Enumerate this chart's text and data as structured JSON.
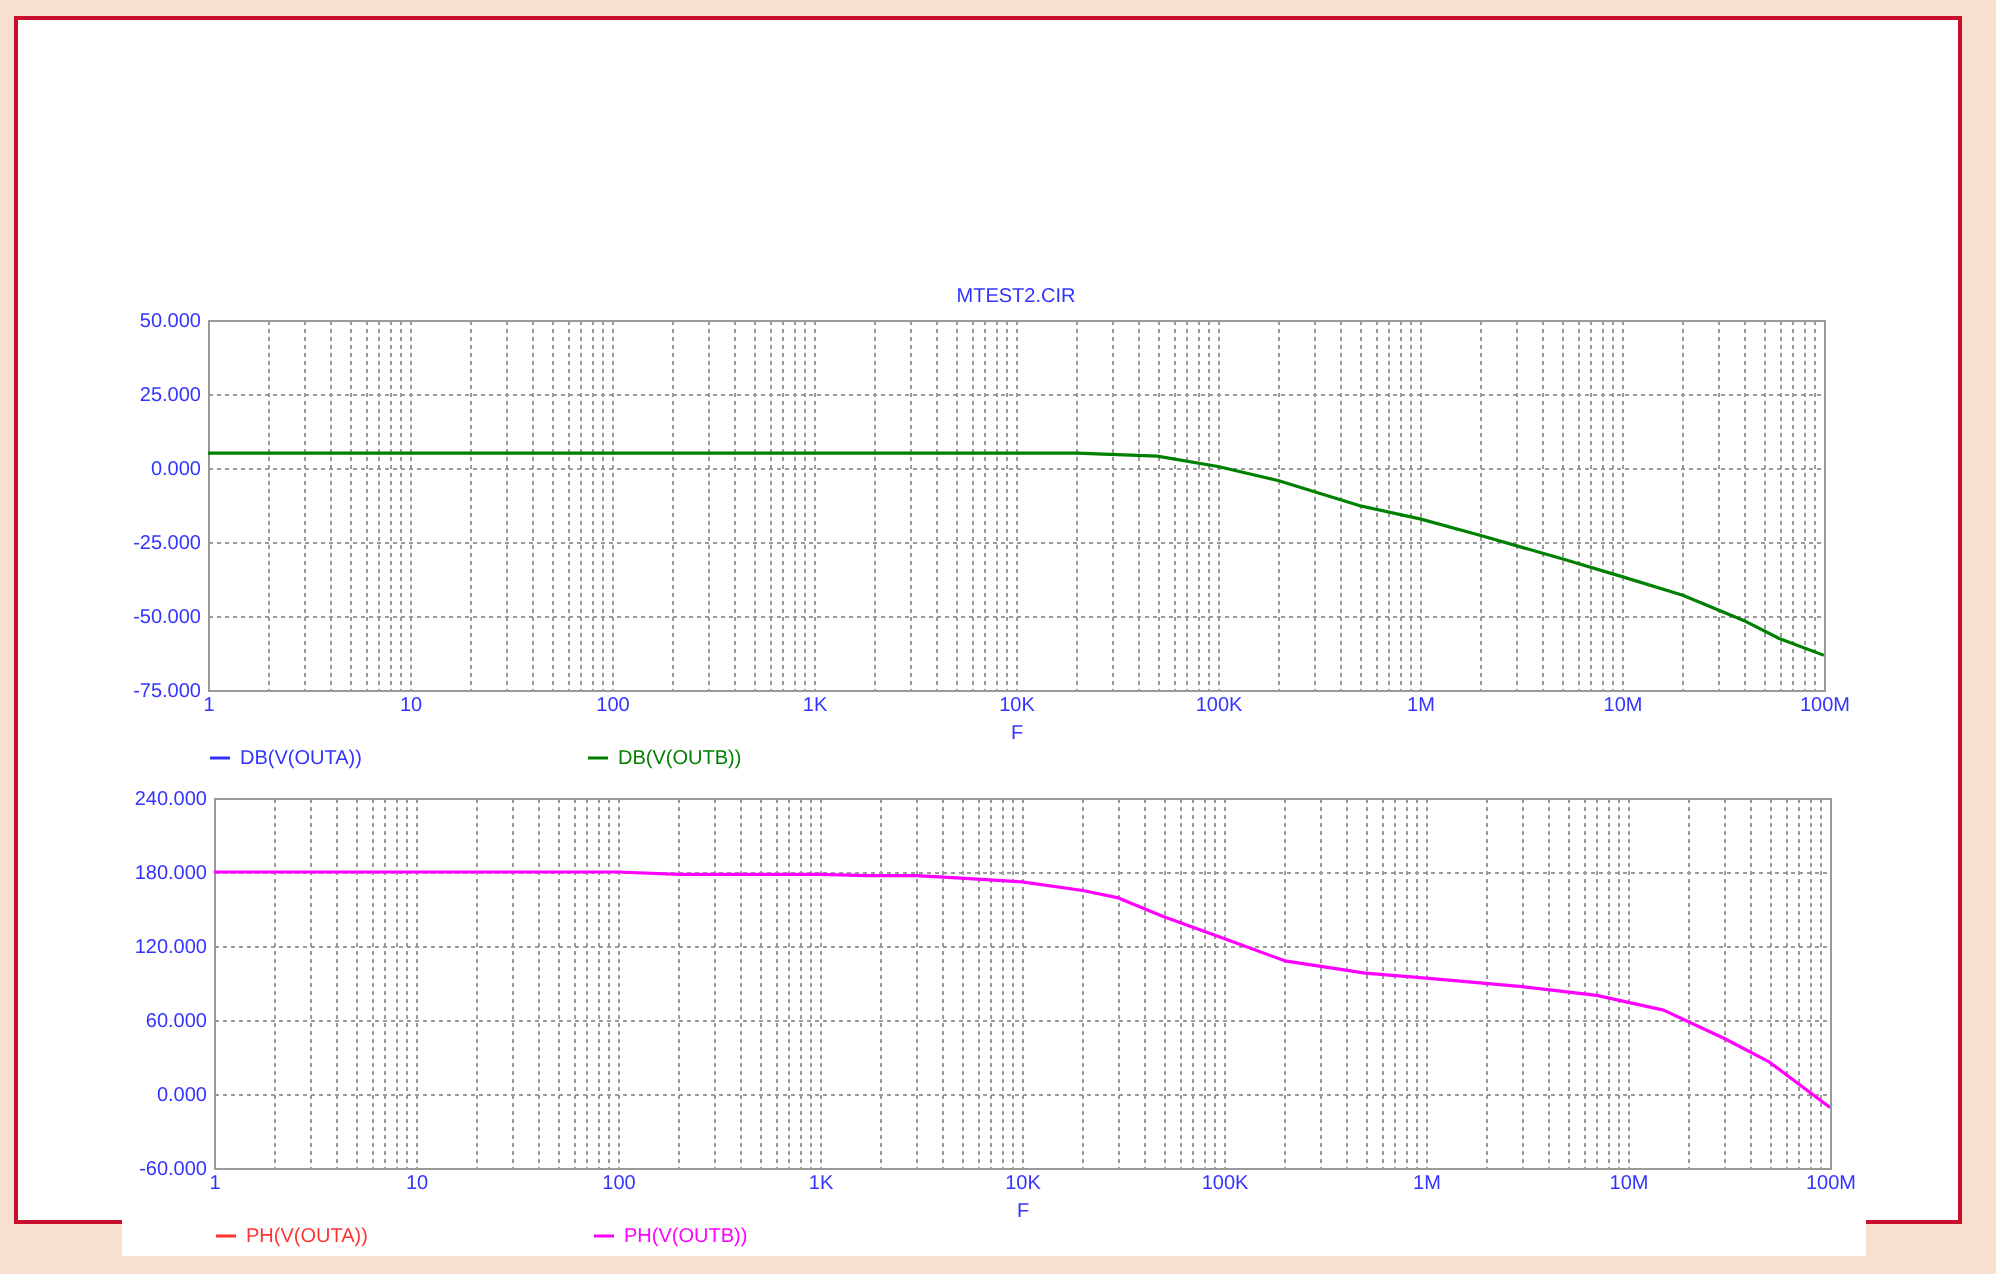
{
  "chart_data": [
    {
      "type": "line",
      "title": "MTEST2.CIR",
      "xlabel": "F",
      "log": "x",
      "grid": true,
      "legend": "bottom",
      "xlim": [
        1,
        100000000
      ],
      "ylim": [
        -75,
        50
      ],
      "xticks": [
        {
          "value": 1,
          "label": "1"
        },
        {
          "value": 2,
          "label": null
        },
        {
          "value": 3,
          "label": null
        },
        {
          "value": 4,
          "label": null
        },
        {
          "value": 5,
          "label": null
        },
        {
          "value": 6,
          "label": null
        },
        {
          "value": 7,
          "label": null
        },
        {
          "value": 8,
          "label": null
        },
        {
          "value": 9,
          "label": null
        },
        {
          "value": 10,
          "label": "10"
        },
        {
          "value": 20,
          "label": null
        },
        {
          "value": 30,
          "label": null
        },
        {
          "value": 40,
          "label": null
        },
        {
          "value": 50,
          "label": null
        },
        {
          "value": 60,
          "label": null
        },
        {
          "value": 70,
          "label": null
        },
        {
          "value": 80,
          "label": null
        },
        {
          "value": 90,
          "label": null
        },
        {
          "value": 100,
          "label": "100"
        },
        {
          "value": 200,
          "label": null
        },
        {
          "value": 300,
          "label": null
        },
        {
          "value": 400,
          "label": null
        },
        {
          "value": 500,
          "label": null
        },
        {
          "value": 600,
          "label": null
        },
        {
          "value": 700,
          "label": null
        },
        {
          "value": 800,
          "label": null
        },
        {
          "value": 900,
          "label": null
        },
        {
          "value": 1000,
          "label": "1K"
        },
        {
          "value": 2000,
          "label": null
        },
        {
          "value": 3000,
          "label": null
        },
        {
          "value": 4000,
          "label": null
        },
        {
          "value": 5000,
          "label": null
        },
        {
          "value": 6000,
          "label": null
        },
        {
          "value": 7000,
          "label": null
        },
        {
          "value": 8000,
          "label": null
        },
        {
          "value": 9000,
          "label": null
        },
        {
          "value": 10000,
          "label": "10K"
        },
        {
          "value": 20000,
          "label": null
        },
        {
          "value": 30000,
          "label": null
        },
        {
          "value": 40000,
          "label": null
        },
        {
          "value": 50000,
          "label": null
        },
        {
          "value": 60000,
          "label": null
        },
        {
          "value": 70000,
          "label": null
        },
        {
          "value": 80000,
          "label": null
        },
        {
          "value": 90000,
          "label": null
        },
        {
          "value": 100000,
          "label": "100K"
        },
        {
          "value": 200000,
          "label": null
        },
        {
          "value": 300000,
          "label": null
        },
        {
          "value": 400000,
          "label": null
        },
        {
          "value": 500000,
          "label": null
        },
        {
          "value": 600000,
          "label": null
        },
        {
          "value": 700000,
          "label": null
        },
        {
          "value": 800000,
          "label": null
        },
        {
          "value": 900000,
          "label": null
        },
        {
          "value": 1000000,
          "label": "1M"
        },
        {
          "value": 2000000,
          "label": null
        },
        {
          "value": 3000000,
          "label": null
        },
        {
          "value": 4000000,
          "label": null
        },
        {
          "value": 5000000,
          "label": null
        },
        {
          "value": 6000000,
          "label": null
        },
        {
          "value": 7000000,
          "label": null
        },
        {
          "value": 8000000,
          "label": null
        },
        {
          "value": 9000000,
          "label": null
        },
        {
          "value": 10000000,
          "label": "10M"
        },
        {
          "value": 20000000,
          "label": null
        },
        {
          "value": 30000000,
          "label": null
        },
        {
          "value": 40000000,
          "label": null
        },
        {
          "value": 50000000,
          "label": null
        },
        {
          "value": 60000000,
          "label": null
        },
        {
          "value": 70000000,
          "label": null
        },
        {
          "value": 80000000,
          "label": null
        },
        {
          "value": 90000000,
          "label": null
        },
        {
          "value": 100000000,
          "label": "100M"
        }
      ],
      "yticks": [
        {
          "value": 50,
          "label": "50.000"
        },
        {
          "value": 25,
          "label": "25.000"
        },
        {
          "value": 0,
          "label": "0.000"
        },
        {
          "value": -25,
          "label": "-25.000"
        },
        {
          "value": -50,
          "label": "-50.000"
        },
        {
          "value": -75,
          "label": "-75.000"
        }
      ],
      "x": [
        1,
        10,
        100,
        1000,
        10000,
        20000,
        50000,
        100000,
        200000,
        500000,
        1000000,
        2000000,
        5000000,
        10000000,
        20000000,
        40000000,
        60000000,
        100000000
      ],
      "series": [
        {
          "name": "DB(V(OUTA))",
          "color": "#3333ff",
          "values": [
            null,
            null,
            null,
            null,
            null,
            null,
            null,
            null,
            null,
            null,
            null,
            null,
            null,
            null,
            null,
            null,
            null,
            null
          ]
        },
        {
          "name": "DB(V(OUTB))",
          "color": "#008000",
          "values": [
            5,
            5,
            5,
            5,
            5,
            5,
            4,
            0.5,
            -4.3,
            -12.7,
            -17.2,
            -22.8,
            -30.6,
            -36.7,
            -43,
            -51.5,
            -57.6,
            -63.3
          ]
        }
      ]
    },
    {
      "type": "line",
      "xlabel": "F",
      "log": "x",
      "grid": true,
      "legend": "bottom",
      "xlim": [
        1,
        100000000
      ],
      "ylim": [
        -60,
        240
      ],
      "xticks": [
        {
          "value": 1,
          "label": "1"
        },
        {
          "value": 2,
          "label": null
        },
        {
          "value": 3,
          "label": null
        },
        {
          "value": 4,
          "label": null
        },
        {
          "value": 5,
          "label": null
        },
        {
          "value": 6,
          "label": null
        },
        {
          "value": 7,
          "label": null
        },
        {
          "value": 8,
          "label": null
        },
        {
          "value": 9,
          "label": null
        },
        {
          "value": 10,
          "label": "10"
        },
        {
          "value": 20,
          "label": null
        },
        {
          "value": 30,
          "label": null
        },
        {
          "value": 40,
          "label": null
        },
        {
          "value": 50,
          "label": null
        },
        {
          "value": 60,
          "label": null
        },
        {
          "value": 70,
          "label": null
        },
        {
          "value": 80,
          "label": null
        },
        {
          "value": 90,
          "label": null
        },
        {
          "value": 100,
          "label": "100"
        },
        {
          "value": 200,
          "label": null
        },
        {
          "value": 300,
          "label": null
        },
        {
          "value": 400,
          "label": null
        },
        {
          "value": 500,
          "label": null
        },
        {
          "value": 600,
          "label": null
        },
        {
          "value": 700,
          "label": null
        },
        {
          "value": 800,
          "label": null
        },
        {
          "value": 900,
          "label": null
        },
        {
          "value": 1000,
          "label": "1K"
        },
        {
          "value": 2000,
          "label": null
        },
        {
          "value": 3000,
          "label": null
        },
        {
          "value": 4000,
          "label": null
        },
        {
          "value": 5000,
          "label": null
        },
        {
          "value": 6000,
          "label": null
        },
        {
          "value": 7000,
          "label": null
        },
        {
          "value": 8000,
          "label": null
        },
        {
          "value": 9000,
          "label": null
        },
        {
          "value": 10000,
          "label": "10K"
        },
        {
          "value": 20000,
          "label": null
        },
        {
          "value": 30000,
          "label": null
        },
        {
          "value": 40000,
          "label": null
        },
        {
          "value": 50000,
          "label": null
        },
        {
          "value": 60000,
          "label": null
        },
        {
          "value": 70000,
          "label": null
        },
        {
          "value": 80000,
          "label": null
        },
        {
          "value": 90000,
          "label": null
        },
        {
          "value": 100000,
          "label": "100K"
        },
        {
          "value": 200000,
          "label": null
        },
        {
          "value": 300000,
          "label": null
        },
        {
          "value": 400000,
          "label": null
        },
        {
          "value": 500000,
          "label": null
        },
        {
          "value": 600000,
          "label": null
        },
        {
          "value": 700000,
          "label": null
        },
        {
          "value": 800000,
          "label": null
        },
        {
          "value": 900000,
          "label": null
        },
        {
          "value": 1000000,
          "label": "1M"
        },
        {
          "value": 2000000,
          "label": null
        },
        {
          "value": 3000000,
          "label": null
        },
        {
          "value": 4000000,
          "label": null
        },
        {
          "value": 5000000,
          "label": null
        },
        {
          "value": 6000000,
          "label": null
        },
        {
          "value": 7000000,
          "label": null
        },
        {
          "value": 8000000,
          "label": null
        },
        {
          "value": 9000000,
          "label": null
        },
        {
          "value": 10000000,
          "label": "10M"
        },
        {
          "value": 20000000,
          "label": null
        },
        {
          "value": 30000000,
          "label": null
        },
        {
          "value": 40000000,
          "label": null
        },
        {
          "value": 50000000,
          "label": null
        },
        {
          "value": 60000000,
          "label": null
        },
        {
          "value": 70000000,
          "label": null
        },
        {
          "value": 80000000,
          "label": null
        },
        {
          "value": 90000000,
          "label": null
        },
        {
          "value": 100000000,
          "label": "100M"
        }
      ],
      "yticks": [
        {
          "value": 240,
          "label": "240.000"
        },
        {
          "value": 180,
          "label": "180.000"
        },
        {
          "value": 120,
          "label": "120.000"
        },
        {
          "value": 60,
          "label": "60.000"
        },
        {
          "value": 0,
          "label": "0.000"
        },
        {
          "value": -60,
          "label": "-60.000"
        }
      ],
      "x": [
        1,
        10,
        100,
        200,
        1000,
        1700,
        3000,
        5000,
        10000,
        20000,
        30000,
        50000,
        100000,
        200000,
        500000,
        1000000,
        3000000,
        7000000,
        15000000,
        30000000,
        50000000,
        100000000
      ],
      "series": [
        {
          "name": "PH(V(OUTA))",
          "color": "#ff3333",
          "values": [
            null,
            null,
            null,
            null,
            null,
            null,
            null,
            null,
            null,
            null,
            null,
            null,
            null,
            null,
            null,
            null,
            null,
            null,
            null,
            null,
            null,
            null
          ]
        },
        {
          "name": "PH(V(OUTB))",
          "color": "#ff00ff",
          "values": [
            180,
            180,
            180,
            178,
            178,
            177,
            177,
            175,
            172,
            165,
            159,
            144,
            126,
            108,
            98,
            94,
            87,
            80,
            68,
            45,
            26,
            -11
          ]
        }
      ]
    }
  ]
}
